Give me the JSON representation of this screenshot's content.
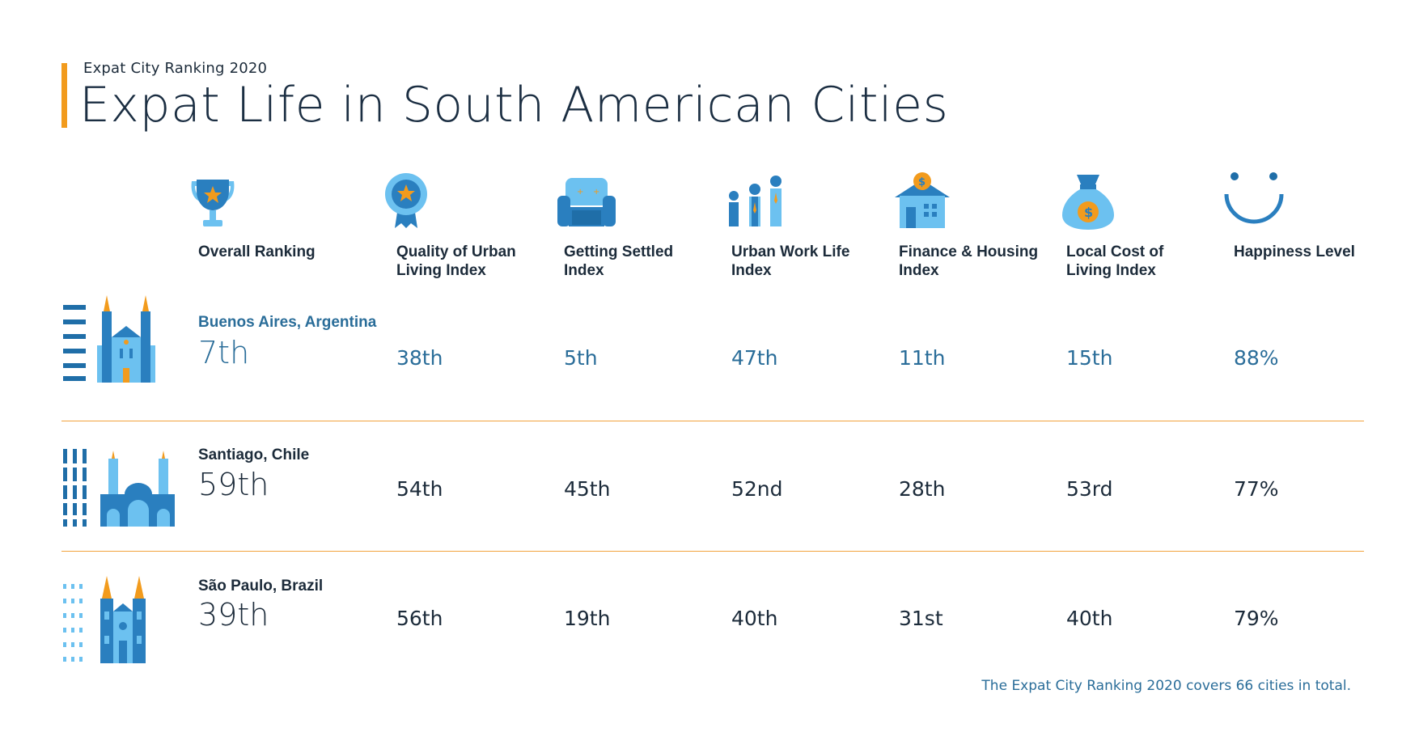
{
  "header": {
    "subtitle": "Expat City Ranking 2020",
    "title": "Expat Life in South American Cities"
  },
  "colors": {
    "accent": "#f29b1d",
    "primary_blue": "#2a7fbf",
    "light_blue": "#6cc1f0",
    "dark_text": "#1c2b3a",
    "highlight_text": "#2a6d99"
  },
  "columns": [
    {
      "label": "Overall Ranking",
      "icon": "trophy-icon"
    },
    {
      "label": "Quality of Urban Living Index",
      "icon": "award-rosette-icon"
    },
    {
      "label": "Getting Settled Index",
      "icon": "armchair-icon"
    },
    {
      "label": "Urban Work Life Index",
      "icon": "people-group-icon"
    },
    {
      "label": "Finance & Housing Index",
      "icon": "house-coin-icon"
    },
    {
      "label": "Local Cost of Living Index",
      "icon": "money-bag-icon"
    },
    {
      "label": "Happiness Level",
      "icon": "smiley-icon"
    }
  ],
  "cities": [
    {
      "name": "Buenos Aires, Argentina",
      "icon": "cathedral-buenos-aires-icon",
      "overall": "7th",
      "values": [
        "38th",
        "5th",
        "47th",
        "11th",
        "15th",
        "88%"
      ]
    },
    {
      "name": "Santiago, Chile",
      "icon": "cathedral-santiago-icon",
      "overall": "59th",
      "values": [
        "54th",
        "45th",
        "52nd",
        "28th",
        "53rd",
        "77%"
      ]
    },
    {
      "name": "São Paulo, Brazil",
      "icon": "cathedral-sao-paulo-icon",
      "overall": "39th",
      "values": [
        "56th",
        "19th",
        "40th",
        "31st",
        "40th",
        "79%"
      ]
    }
  ],
  "footnote": "The Expat City Ranking 2020 covers 66 cities in total."
}
